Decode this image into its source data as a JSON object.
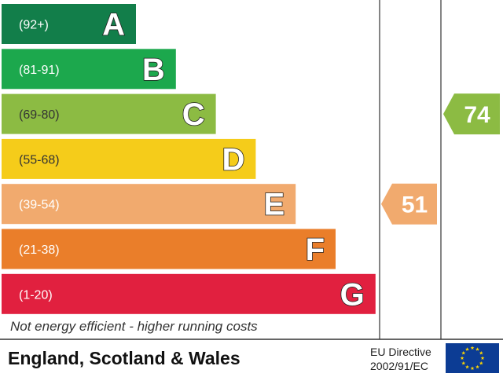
{
  "chart_data": {
    "type": "bar",
    "bands": [
      {
        "grade": "A",
        "range": "(92+)",
        "color": "#127e4a"
      },
      {
        "grade": "B",
        "range": "(81-91)",
        "color": "#1ca84d"
      },
      {
        "grade": "C",
        "range": "(69-80)",
        "color": "#8cbb43"
      },
      {
        "grade": "D",
        "range": "(55-68)",
        "color": "#f5cc1a"
      },
      {
        "grade": "E",
        "range": "(39-54)",
        "color": "#f1aa6e"
      },
      {
        "grade": "F",
        "range": "(21-38)",
        "color": "#ea7e2a"
      },
      {
        "grade": "G",
        "range": "(1-20)",
        "color": "#e1203f"
      }
    ],
    "ratings": [
      {
        "value": "51",
        "grade": "E",
        "color": "#f1aa6e"
      },
      {
        "value": "74",
        "grade": "C",
        "color": "#8cbb43"
      }
    ],
    "bottom_note": "Not energy efficient - higher running costs"
  },
  "footer": {
    "region": "England, Scotland & Wales",
    "directive_line1": "EU Directive",
    "directive_line2": "2002/91/EC",
    "flag_colors": {
      "background": "#0c3c94",
      "stars": "#ffd700"
    }
  }
}
